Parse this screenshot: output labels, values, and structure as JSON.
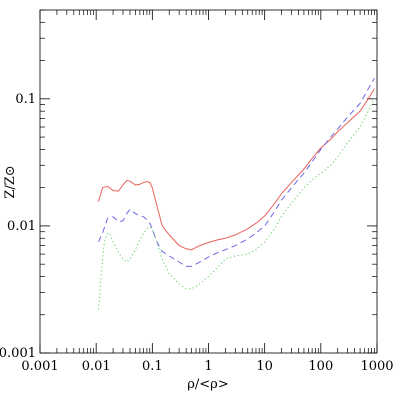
{
  "chart_data": {
    "type": "line",
    "xlabel": "ρ/<ρ>",
    "ylabel": "Z/Z⊙",
    "xscale": "log",
    "yscale": "log",
    "xlim": [
      0.001,
      1000
    ],
    "ylim": [
      0.001,
      0.5
    ],
    "x_ticks": [
      {
        "value": 0.001,
        "label": "0.001"
      },
      {
        "value": 0.01,
        "label": "0.01"
      },
      {
        "value": 0.1,
        "label": "0.1"
      },
      {
        "value": 1,
        "label": "1"
      },
      {
        "value": 10,
        "label": "10"
      },
      {
        "value": 100,
        "label": "100"
      },
      {
        "value": 1000,
        "label": "1000"
      }
    ],
    "y_ticks": [
      {
        "value": 0.001,
        "label": "0.001"
      },
      {
        "value": 0.01,
        "label": "0.01"
      },
      {
        "value": 0.1,
        "label": "0.1"
      }
    ],
    "grid": false,
    "legend": "none",
    "series": [
      {
        "style": "solid",
        "color": "#e8625a",
        "x": [
          0.011,
          0.013,
          0.016,
          0.02,
          0.025,
          0.03,
          0.035,
          0.04,
          0.05,
          0.06,
          0.07,
          0.08,
          0.09,
          0.1,
          0.12,
          0.15,
          0.2,
          0.3,
          0.4,
          0.5,
          0.7,
          1,
          1.5,
          2,
          3,
          5,
          7,
          10,
          15,
          20,
          30,
          50,
          70,
          100,
          150,
          200,
          300,
          500,
          700,
          900
        ],
        "y": [
          0.0155,
          0.02,
          0.0205,
          0.019,
          0.0188,
          0.021,
          0.0228,
          0.0225,
          0.021,
          0.0213,
          0.022,
          0.0223,
          0.022,
          0.02,
          0.0145,
          0.01,
          0.0085,
          0.007,
          0.0066,
          0.0065,
          0.007,
          0.0074,
          0.0078,
          0.008,
          0.0085,
          0.0095,
          0.0105,
          0.012,
          0.015,
          0.018,
          0.022,
          0.028,
          0.034,
          0.041,
          0.048,
          0.055,
          0.065,
          0.08,
          0.1,
          0.12
        ]
      },
      {
        "style": "dashed",
        "color": "#6a6ae6",
        "x": [
          0.011,
          0.013,
          0.016,
          0.02,
          0.025,
          0.03,
          0.035,
          0.04,
          0.05,
          0.06,
          0.07,
          0.08,
          0.09,
          0.1,
          0.12,
          0.15,
          0.2,
          0.3,
          0.4,
          0.5,
          0.7,
          1,
          1.5,
          2,
          3,
          5,
          7,
          10,
          15,
          20,
          30,
          50,
          70,
          100,
          150,
          200,
          300,
          500,
          700,
          900
        ],
        "y": [
          0.0075,
          0.0088,
          0.0115,
          0.0118,
          0.0108,
          0.011,
          0.0125,
          0.0135,
          0.0125,
          0.012,
          0.0118,
          0.0112,
          0.0105,
          0.0095,
          0.0075,
          0.0063,
          0.0058,
          0.0052,
          0.0048,
          0.0048,
          0.0052,
          0.0057,
          0.0062,
          0.0065,
          0.007,
          0.0079,
          0.0088,
          0.01,
          0.013,
          0.016,
          0.02,
          0.026,
          0.032,
          0.04,
          0.05,
          0.058,
          0.072,
          0.092,
          0.12,
          0.145
        ]
      },
      {
        "style": "dotted",
        "color": "#5fcc5f",
        "x": [
          0.011,
          0.012,
          0.013,
          0.014,
          0.016,
          0.018,
          0.02,
          0.025,
          0.03,
          0.035,
          0.04,
          0.05,
          0.06,
          0.07,
          0.08,
          0.09,
          0.1,
          0.12,
          0.15,
          0.2,
          0.3,
          0.4,
          0.5,
          0.7,
          1,
          1.5,
          2,
          3,
          5,
          7,
          10,
          15,
          20,
          30,
          50,
          70,
          100,
          150,
          200,
          300,
          500,
          700,
          900
        ],
        "y": [
          0.0022,
          0.0035,
          0.0055,
          0.0075,
          0.0088,
          0.0085,
          0.0075,
          0.0062,
          0.0055,
          0.0052,
          0.0055,
          0.0065,
          0.0078,
          0.0088,
          0.0095,
          0.0098,
          0.0093,
          0.0075,
          0.0055,
          0.0042,
          0.0035,
          0.0032,
          0.0032,
          0.0035,
          0.004,
          0.0048,
          0.0055,
          0.0058,
          0.006,
          0.0065,
          0.0075,
          0.0095,
          0.012,
          0.015,
          0.02,
          0.023,
          0.026,
          0.03,
          0.035,
          0.045,
          0.06,
          0.08,
          0.1
        ]
      }
    ]
  }
}
